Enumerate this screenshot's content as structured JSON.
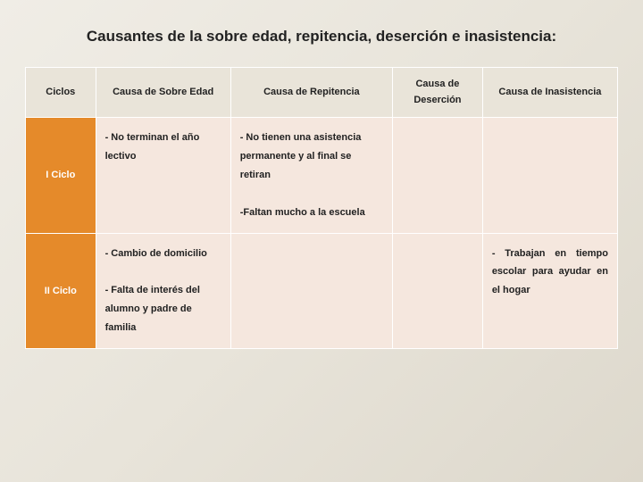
{
  "title": "Causantes de la sobre edad, repitencia, deserción e inasistencia:",
  "table": {
    "headers": {
      "ciclos": "Ciclos",
      "sobre_edad": "Causa de Sobre Edad",
      "repitencia": "Causa de Repitencia",
      "desercion": "Causa de Deserción",
      "inasistencia": "Causa de Inasistencia"
    },
    "rows": [
      {
        "ciclo": "I Ciclo",
        "sobre_edad": "- No terminan el año lectivo",
        "repitencia": "- No tienen una asistencia permanente y al final se retiran\n\n-Faltan mucho a la escuela",
        "desercion": "",
        "inasistencia": ""
      },
      {
        "ciclo": "II Ciclo",
        "sobre_edad": "- Cambio de domicilio\n\n- Falta de interés del alumno y padre de familia",
        "repitencia": "",
        "desercion": "",
        "inasistencia": "- Trabajan en tiempo escolar para ayudar en el hogar"
      }
    ]
  },
  "colors": {
    "header_bg": "#e9e4d9",
    "rowhead_bg": "#e58a2a",
    "cell_bg": "#f5e7de",
    "border": "#ffffff"
  }
}
